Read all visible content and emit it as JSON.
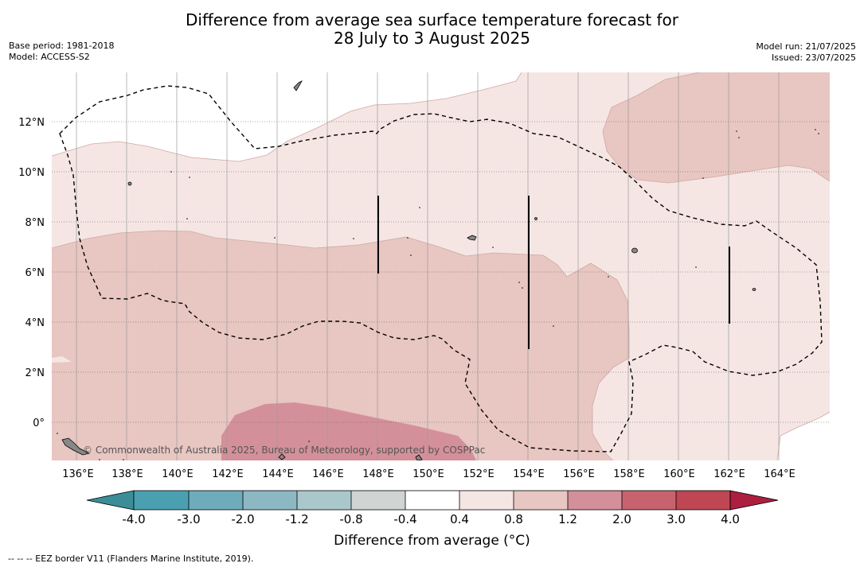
{
  "title_line1": "Difference from average sea surface temperature forecast for",
  "title_line2": "28 July to 3 August 2025",
  "meta_left": [
    "Base period: 1981-2018",
    "Model: ACCESS-S2"
  ],
  "meta_right": [
    "Model run: 21/07/2025",
    "Issued: 23/07/2025"
  ],
  "lat_labels": [
    "12°N",
    "10°N",
    "8°N",
    "6°N",
    "4°N",
    "2°N",
    "0°"
  ],
  "lon_labels": [
    "136°E",
    "138°E",
    "140°E",
    "142°E",
    "144°E",
    "146°E",
    "148°E",
    "150°E",
    "152°E",
    "154°E",
    "156°E",
    "158°E",
    "160°E",
    "162°E",
    "164°E"
  ],
  "credit": "© Commonwealth of Australia 2025, Bureau of Meteorology, supported by COSPPac",
  "colorbar": {
    "title": "Difference from average (°C)",
    "tick_labels": [
      "-4.0",
      "-3.0",
      "-2.0",
      "-1.2",
      "-0.8",
      "-0.4",
      "0.4",
      "0.8",
      "1.2",
      "2.0",
      "3.0",
      "4.0"
    ],
    "colors": [
      "#3b8e98",
      "#4aa0b1",
      "#6eacbb",
      "#8cb8c4",
      "#aac8cc",
      "#d0d4d3",
      "#ffffff",
      "#f5e6e4",
      "#e8c6c1",
      "#d4909a",
      "#c7636e",
      "#bf4653",
      "#ad1f3f"
    ]
  },
  "footnote": "--  --  -- EEZ border V11 (Flanders Marine Institute, 2019)."
}
